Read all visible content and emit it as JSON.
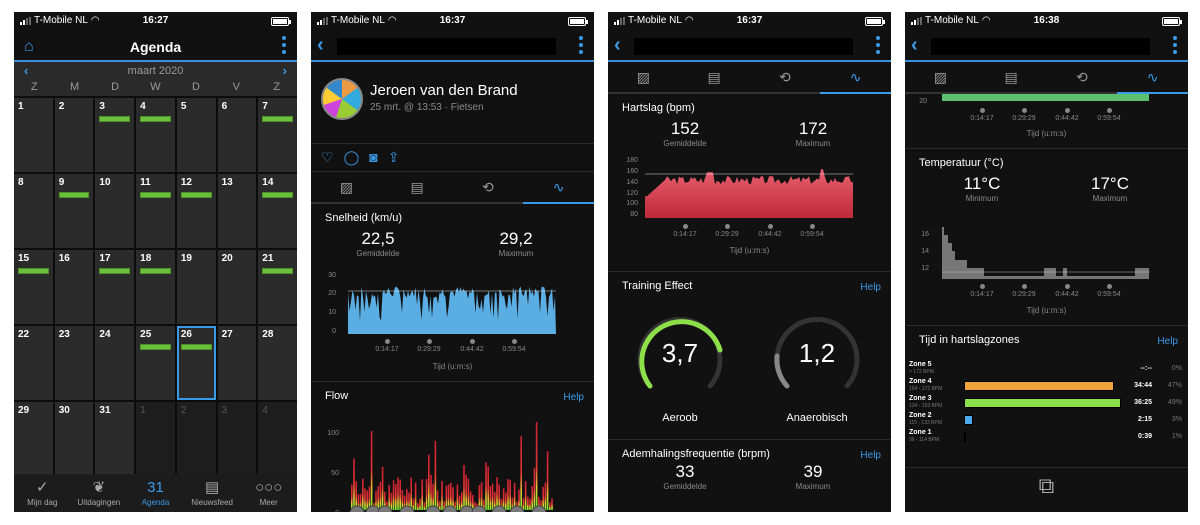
{
  "phones": [
    {
      "status": {
        "carrier": "T-Mobile NL",
        "time": "16:27"
      },
      "nav": {
        "title": "Agenda",
        "left_icon": "inbox-icon"
      },
      "calendar": {
        "month": "maart 2020",
        "weekdays": [
          "Z",
          "M",
          "D",
          "W",
          "D",
          "V",
          "Z"
        ],
        "days": [
          {
            "d": "1",
            "evt": false
          },
          {
            "d": "2",
            "evt": false
          },
          {
            "d": "3",
            "evt": true
          },
          {
            "d": "4",
            "evt": true
          },
          {
            "d": "5",
            "evt": false
          },
          {
            "d": "6",
            "evt": false
          },
          {
            "d": "7",
            "evt": true
          },
          {
            "d": "8",
            "evt": false
          },
          {
            "d": "9",
            "evt": true
          },
          {
            "d": "10",
            "evt": false
          },
          {
            "d": "11",
            "evt": true
          },
          {
            "d": "12",
            "evt": true
          },
          {
            "d": "13",
            "evt": false
          },
          {
            "d": "14",
            "evt": true
          },
          {
            "d": "15",
            "evt": true
          },
          {
            "d": "16",
            "evt": false
          },
          {
            "d": "17",
            "evt": true
          },
          {
            "d": "18",
            "evt": true
          },
          {
            "d": "19",
            "evt": false
          },
          {
            "d": "20",
            "evt": false
          },
          {
            "d": "21",
            "evt": true
          },
          {
            "d": "22",
            "evt": false
          },
          {
            "d": "23",
            "evt": false
          },
          {
            "d": "24",
            "evt": false
          },
          {
            "d": "25",
            "evt": true
          },
          {
            "d": "26",
            "evt": true,
            "today": true
          },
          {
            "d": "27",
            "evt": false
          },
          {
            "d": "28",
            "evt": false
          },
          {
            "d": "29",
            "evt": false
          },
          {
            "d": "30",
            "evt": false
          },
          {
            "d": "31",
            "evt": false
          },
          {
            "d": "1",
            "evt": false,
            "other": true
          },
          {
            "d": "2",
            "evt": false,
            "other": true
          },
          {
            "d": "3",
            "evt": false,
            "other": true
          },
          {
            "d": "4",
            "evt": false,
            "other": true
          }
        ]
      },
      "tabbar": [
        {
          "label": "Mijn dag",
          "icon": "✓",
          "active": false
        },
        {
          "label": "Uitdagingen",
          "icon": "❦",
          "active": false
        },
        {
          "label": "Agenda",
          "icon": "31",
          "active": true
        },
        {
          "label": "Nieuwsfeed",
          "icon": "▤",
          "active": false
        },
        {
          "label": "Meer",
          "icon": "○○○",
          "active": false
        }
      ]
    },
    {
      "status": {
        "carrier": "T-Mobile NL",
        "time": "16:37"
      },
      "profile": {
        "name": "Jeroen van den Brand",
        "sub": "25 mrt. @ 13:53 · Fietsen"
      },
      "speed": {
        "title": "Snelheid (km/u)",
        "avg": "22,5",
        "avg_label": "Gemiddelde",
        "max": "29,2",
        "max_label": "Maximum",
        "yticks": [
          "30",
          "20",
          "10",
          "0"
        ],
        "xticks": [
          "0:14:17",
          "0:29:29",
          "0:44:42",
          "0:59:54"
        ],
        "xlabel": "Tijd (u:m:s)"
      },
      "flow": {
        "title": "Flow",
        "help": "Help",
        "yticks": [
          "100",
          "50",
          "0"
        ]
      }
    },
    {
      "status": {
        "carrier": "T-Mobile NL",
        "time": "16:37"
      },
      "hr": {
        "title": "Hartslag (bpm)",
        "avg": "152",
        "avg_label": "Gemiddelde",
        "max": "172",
        "max_label": "Maximum",
        "yticks": [
          "180",
          "160",
          "140",
          "120",
          "100",
          "80"
        ],
        "xticks": [
          "0:14:17",
          "0:29:29",
          "0:44:42",
          "0:59:54"
        ],
        "xlabel": "Tijd (u:m:s)"
      },
      "training": {
        "title": "Training Effect",
        "help": "Help",
        "aerobic": "3,7",
        "aerobic_label": "Aeroob",
        "anaerobic": "1,2",
        "anaerobic_label": "Anaerobisch"
      },
      "resp": {
        "title": "Ademhalingsfrequentie (brpm)",
        "help": "Help",
        "avg": "33",
        "avg_label": "Gemiddelde",
        "max": "39",
        "max_label": "Maximum"
      }
    },
    {
      "status": {
        "carrier": "T-Mobile NL",
        "time": "16:38"
      },
      "top_chart": {
        "ytick": "20",
        "xticks": [
          "0:14:17",
          "0:29:29",
          "0:44:42",
          "0:59:54"
        ],
        "xlabel": "Tijd (u:m:s)"
      },
      "temp": {
        "title": "Temperatuur (°C)",
        "min": "11°C",
        "min_label": "Minimum",
        "max": "17°C",
        "max_label": "Maximum",
        "yticks": [
          "16",
          "14",
          "12"
        ],
        "xticks": [
          "0:14:17",
          "0:29:29",
          "0:44:42",
          "0:59:54"
        ],
        "xlabel": "Tijd (u:m:s)"
      },
      "zones": {
        "title": "Tijd in hartslagzones",
        "help": "Help",
        "rows": [
          {
            "name": "Zone 5",
            "range": "> 172 BPM",
            "time": "--:--",
            "pct": "0%",
            "width": 0,
            "color": "#888888"
          },
          {
            "name": "Zone 4",
            "range": "154 - 172 BPM",
            "time": "34:44",
            "pct": "47%",
            "width": 150,
            "color": "#f0a33a"
          },
          {
            "name": "Zone 3",
            "range": "134 - 153 BPM",
            "time": "36:25",
            "pct": "49%",
            "width": 157,
            "color": "#8ee04a"
          },
          {
            "name": "Zone 2",
            "range": "115 - 133 BPM",
            "time": "2:15",
            "pct": "3%",
            "width": 9,
            "color": "#4aa8ee"
          },
          {
            "name": "Zone 1",
            "range": "96 - 114 BPM",
            "time": "0:39",
            "pct": "1%",
            "width": 2,
            "color": "#aaaaaa"
          }
        ]
      }
    }
  ],
  "activity_tabs": [
    {
      "icon": "overview-icon",
      "glyph": "▨"
    },
    {
      "icon": "details-icon",
      "glyph": "▤"
    },
    {
      "icon": "laps-icon",
      "glyph": "⟲"
    },
    {
      "icon": "charts-icon",
      "glyph": "∿"
    }
  ]
}
